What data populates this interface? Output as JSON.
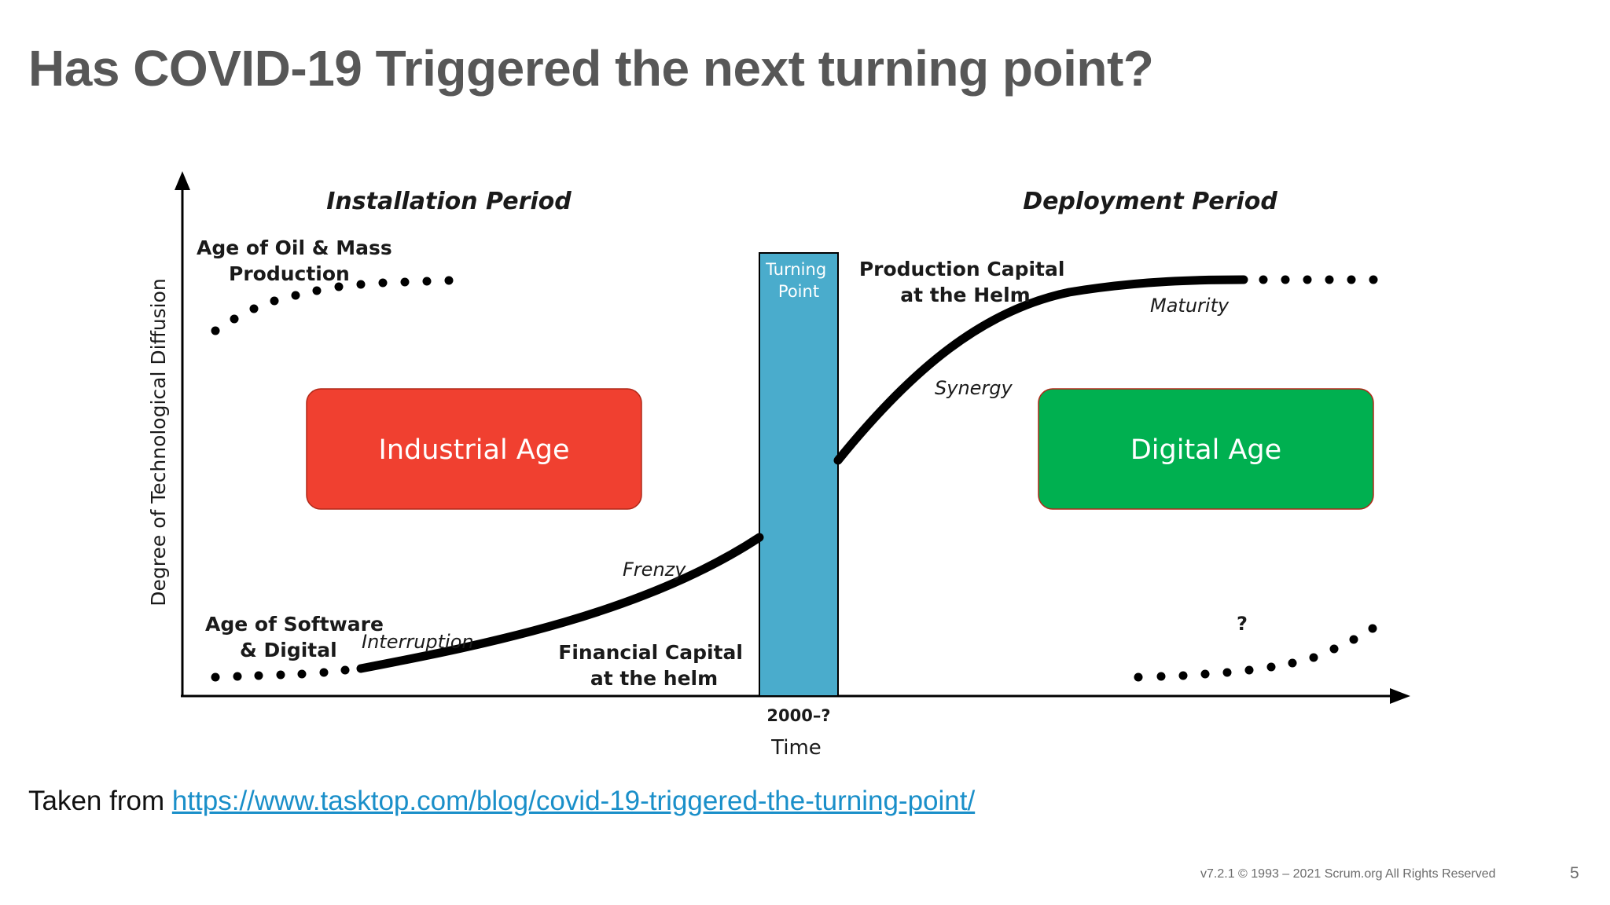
{
  "slide": {
    "title": "Has COVID-19 Triggered the next turning point?",
    "page_number": "5",
    "copyright": "v7.2.1 © 1993 – 2021 Scrum.org All Rights Reserved"
  },
  "diagram": {
    "y_axis_label": "Degree of Technological Diffusion",
    "x_axis_label": "Time",
    "x_axis_marker": "2000–?",
    "installation_period": "Installation Period",
    "deployment_period": "Deployment Period",
    "turning_point": [
      "Turning",
      "Point"
    ],
    "age_oil": [
      "Age of Oil & Mass",
      "Production"
    ],
    "age_software": [
      "Age of Software",
      "& Digital"
    ],
    "production_capital": [
      "Production Capital",
      "at the Helm"
    ],
    "financial_capital": [
      "Financial Capital",
      "at the helm"
    ],
    "phase_interruption": "Interruption",
    "phase_frenzy": "Frenzy",
    "phase_synergy": "Synergy",
    "phase_maturity": "Maturity",
    "question_mark": "?",
    "industrial_age": "Industrial Age",
    "digital_age": "Digital Age",
    "colors": {
      "industrial_box": "#f04030",
      "digital_box": "#00b050",
      "turning_point_bar": "#4aaccc",
      "curve": "#000000"
    }
  },
  "source": {
    "prefix": "Taken from ",
    "url": "https://www.tasktop.com/blog/covid-19-triggered-the-turning-point/"
  }
}
